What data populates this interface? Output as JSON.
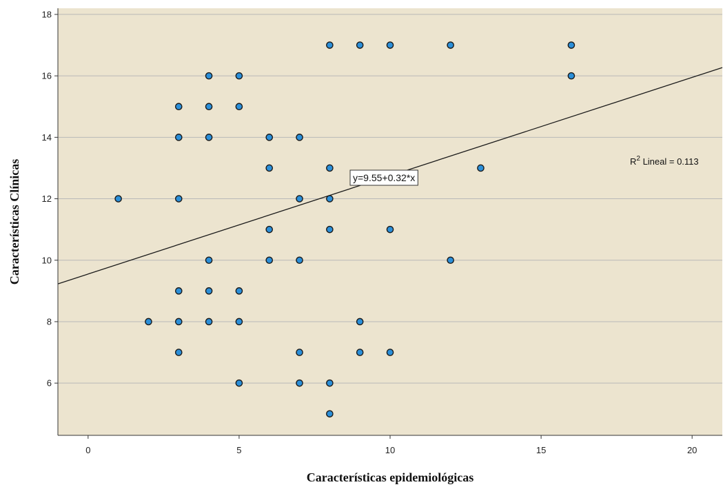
{
  "chart_data": {
    "type": "scatter",
    "xlabel": "Características epidemiológicas",
    "ylabel": "Características Clínicas",
    "xlim": [
      -1,
      21
    ],
    "ylim": [
      4.3,
      18.2
    ],
    "xticks": [
      0,
      5,
      10,
      15,
      20
    ],
    "yticks": [
      6,
      8,
      10,
      12,
      14,
      16,
      18
    ],
    "grid": "horizontal",
    "points": [
      {
        "x": 8,
        "y": 17
      },
      {
        "x": 9,
        "y": 17
      },
      {
        "x": 10,
        "y": 17
      },
      {
        "x": 12,
        "y": 17
      },
      {
        "x": 16,
        "y": 17
      },
      {
        "x": 4,
        "y": 16
      },
      {
        "x": 5,
        "y": 16
      },
      {
        "x": 16,
        "y": 16
      },
      {
        "x": 3,
        "y": 15
      },
      {
        "x": 4,
        "y": 15
      },
      {
        "x": 5,
        "y": 15
      },
      {
        "x": 3,
        "y": 14
      },
      {
        "x": 4,
        "y": 14
      },
      {
        "x": 6,
        "y": 14
      },
      {
        "x": 7,
        "y": 14
      },
      {
        "x": 6,
        "y": 13
      },
      {
        "x": 8,
        "y": 13
      },
      {
        "x": 13,
        "y": 13
      },
      {
        "x": 1,
        "y": 12
      },
      {
        "x": 3,
        "y": 12
      },
      {
        "x": 7,
        "y": 12
      },
      {
        "x": 8,
        "y": 12
      },
      {
        "x": 6,
        "y": 11
      },
      {
        "x": 8,
        "y": 11
      },
      {
        "x": 10,
        "y": 11
      },
      {
        "x": 4,
        "y": 10
      },
      {
        "x": 6,
        "y": 10
      },
      {
        "x": 7,
        "y": 10
      },
      {
        "x": 12,
        "y": 10
      },
      {
        "x": 3,
        "y": 9
      },
      {
        "x": 4,
        "y": 9
      },
      {
        "x": 5,
        "y": 9
      },
      {
        "x": 2,
        "y": 8
      },
      {
        "x": 3,
        "y": 8
      },
      {
        "x": 4,
        "y": 8
      },
      {
        "x": 5,
        "y": 8
      },
      {
        "x": 9,
        "y": 8
      },
      {
        "x": 3,
        "y": 7
      },
      {
        "x": 7,
        "y": 7
      },
      {
        "x": 9,
        "y": 7
      },
      {
        "x": 10,
        "y": 7
      },
      {
        "x": 5,
        "y": 6
      },
      {
        "x": 7,
        "y": 6
      },
      {
        "x": 8,
        "y": 6
      },
      {
        "x": 8,
        "y": 5
      }
    ],
    "fit_line": {
      "intercept": 9.55,
      "slope": 0.32
    },
    "equation_label": "y=9.55+0.32*x",
    "r2_label_prefix": "R",
    "r2_label_sup": "2",
    "r2_label_suffix": " Lineal = 0.113",
    "colors": {
      "plot_background": "#ece4cf",
      "gridline": "#b8b8b8",
      "point_fill": "#2b8fd9",
      "point_stroke": "#1a1a1a",
      "fit_line": "#1a1a1a"
    }
  }
}
